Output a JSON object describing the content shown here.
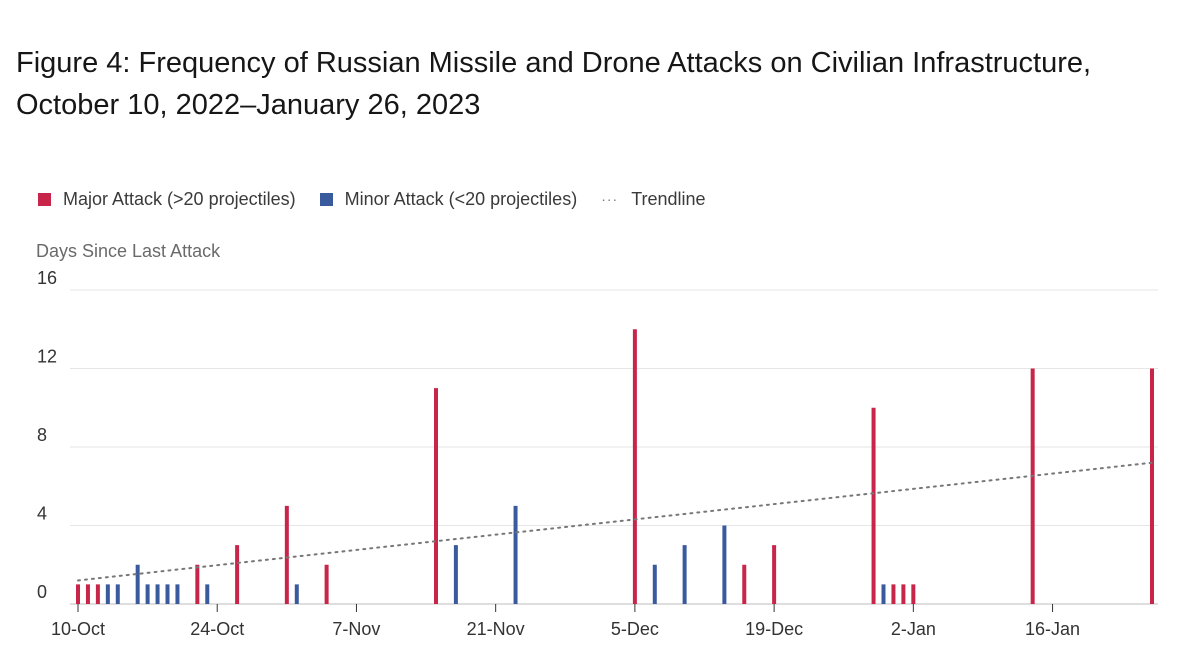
{
  "chart_data": {
    "type": "bar",
    "title": "Figure 4: Frequency of Russian Missile and Drone Attacks on Civilian Infrastructure, October 10, 2022–January 26, 2023",
    "xlabel": "",
    "ylabel": "Days Since Last Attack",
    "ylim": [
      0,
      16
    ],
    "yticks": [
      0,
      4,
      8,
      12,
      16
    ],
    "grid": true,
    "legend_position": "top-left",
    "x_start": "2022-10-10",
    "x_range_days": [
      0,
      108
    ],
    "xticks": [
      {
        "day": 0,
        "label": "10-Oct"
      },
      {
        "day": 14,
        "label": "24-Oct"
      },
      {
        "day": 28,
        "label": "7-Nov"
      },
      {
        "day": 42,
        "label": "21-Nov"
      },
      {
        "day": 56,
        "label": "5-Dec"
      },
      {
        "day": 70,
        "label": "19-Dec"
      },
      {
        "day": 84,
        "label": "2-Jan"
      },
      {
        "day": 98,
        "label": "16-Jan"
      }
    ],
    "series": [
      {
        "name": "Major Attack (>20 projectiles)",
        "color": "#c8254a",
        "points": [
          {
            "day": 0,
            "value": 1
          },
          {
            "day": 1,
            "value": 1
          },
          {
            "day": 2,
            "value": 1
          },
          {
            "day": 12,
            "value": 2
          },
          {
            "day": 16,
            "value": 3
          },
          {
            "day": 21,
            "value": 5
          },
          {
            "day": 25,
            "value": 2
          },
          {
            "day": 36,
            "value": 11
          },
          {
            "day": 56,
            "value": 14
          },
          {
            "day": 67,
            "value": 2
          },
          {
            "day": 70,
            "value": 3
          },
          {
            "day": 80,
            "value": 10
          },
          {
            "day": 82,
            "value": 1
          },
          {
            "day": 83,
            "value": 1
          },
          {
            "day": 84,
            "value": 1
          },
          {
            "day": 96,
            "value": 12
          },
          {
            "day": 108,
            "value": 12
          }
        ]
      },
      {
        "name": "Minor Attack (<20 projectiles)",
        "color": "#3a5a9e",
        "points": [
          {
            "day": 3,
            "value": 1
          },
          {
            "day": 4,
            "value": 1
          },
          {
            "day": 6,
            "value": 2
          },
          {
            "day": 7,
            "value": 1
          },
          {
            "day": 8,
            "value": 1
          },
          {
            "day": 9,
            "value": 1
          },
          {
            "day": 10,
            "value": 1
          },
          {
            "day": 13,
            "value": 1
          },
          {
            "day": 22,
            "value": 1
          },
          {
            "day": 38,
            "value": 3
          },
          {
            "day": 44,
            "value": 5
          },
          {
            "day": 58,
            "value": 2
          },
          {
            "day": 61,
            "value": 3
          },
          {
            "day": 65,
            "value": 4
          },
          {
            "day": 81,
            "value": 1
          }
        ]
      },
      {
        "name": "Trendline",
        "color": "#777777",
        "type": "line",
        "x": [
          0,
          108
        ],
        "values": [
          1.2,
          7.2
        ]
      }
    ]
  }
}
